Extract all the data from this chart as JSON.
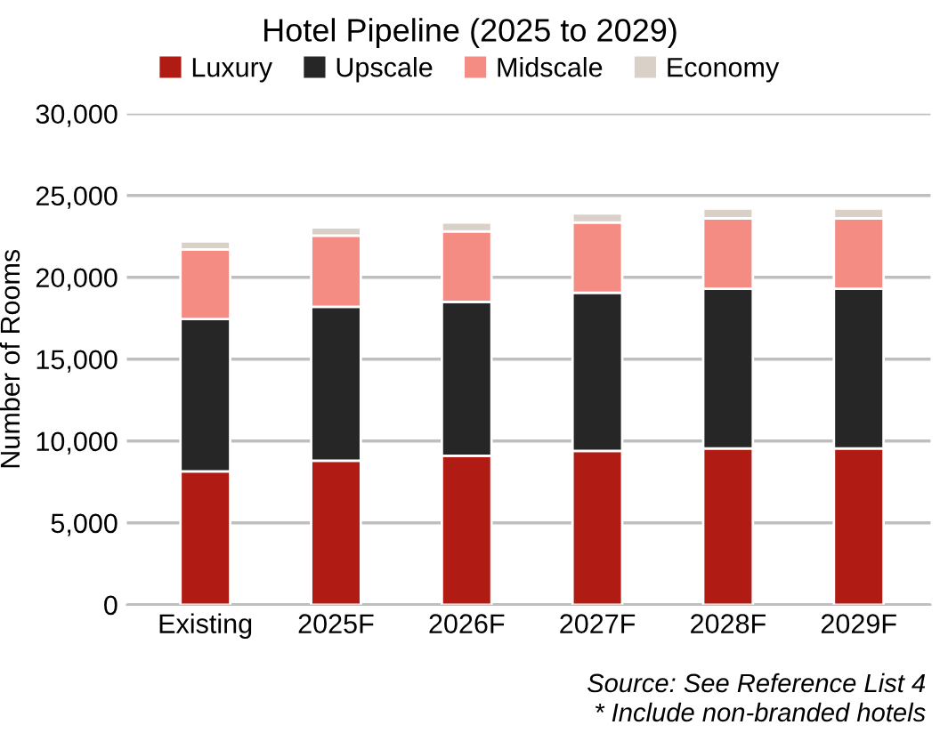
{
  "chart_data": {
    "type": "bar",
    "stacked": true,
    "title": "Hotel Pipeline (2025 to 2029)",
    "ylabel": "Number of Rooms",
    "categories": [
      "Existing",
      "2025F",
      "2026F",
      "2027F",
      "2028F",
      "2029F"
    ],
    "series": [
      {
        "name": "Luxury",
        "color": "#b01c14",
        "values": [
          8150,
          8800,
          9100,
          9400,
          9550,
          9550
        ]
      },
      {
        "name": "Upscale",
        "color": "#262626",
        "values": [
          9300,
          9400,
          9400,
          9650,
          9750,
          9750
        ]
      },
      {
        "name": "Midscale",
        "color": "#f48c84",
        "values": [
          4250,
          4350,
          4300,
          4300,
          4300,
          4300
        ]
      },
      {
        "name": "Economy",
        "color": "#d9d0c8",
        "values": [
          500,
          500,
          550,
          550,
          600,
          600
        ]
      }
    ],
    "ylim": [
      0,
      30000
    ],
    "yticks": [
      {
        "value": 0,
        "label": "0"
      },
      {
        "value": 5000,
        "label": "5,000"
      },
      {
        "value": 10000,
        "label": "10,000"
      },
      {
        "value": 15000,
        "label": "15,000"
      },
      {
        "value": 20000,
        "label": "20,000"
      },
      {
        "value": 25000,
        "label": "25,000"
      },
      {
        "value": 30000,
        "label": "30,000"
      }
    ],
    "grid": "y",
    "legend": "top",
    "annotations": [
      "Source: See Reference List 4",
      "* Include non-branded hotels"
    ]
  }
}
